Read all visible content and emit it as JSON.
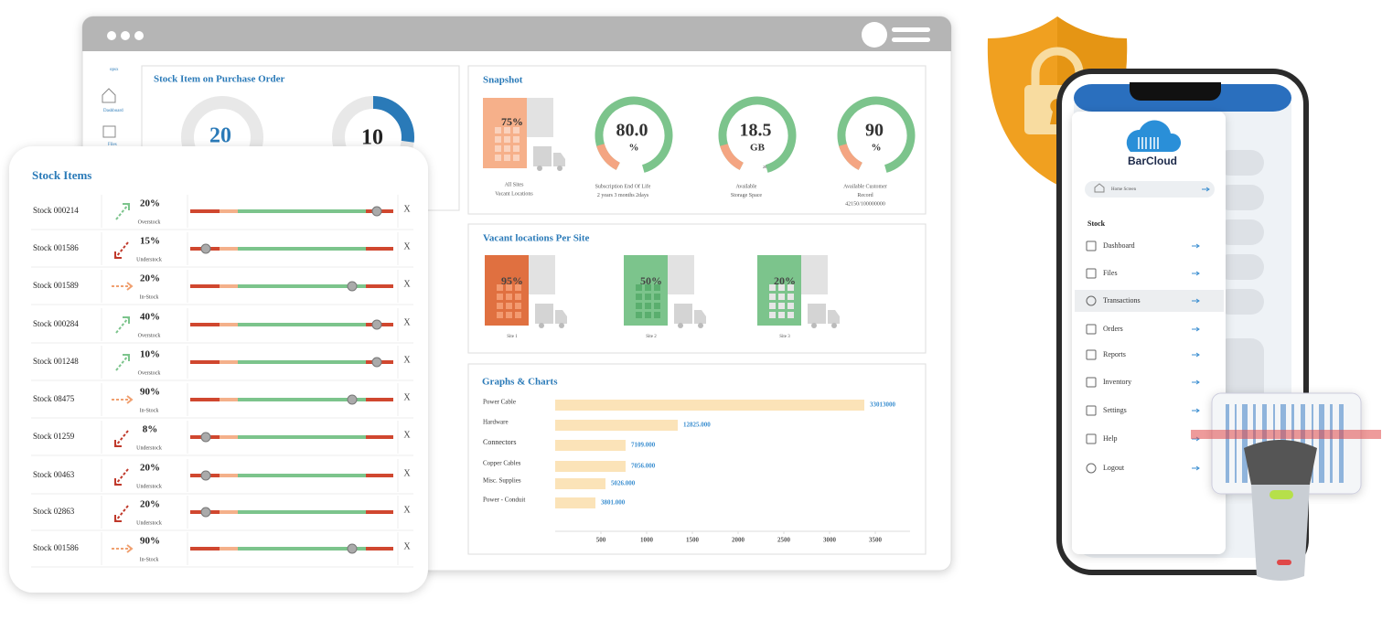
{
  "sidebar": {
    "items": [
      "opsx",
      "Dashboard",
      "Files"
    ]
  },
  "purchase_order": {
    "title": "Stock Item on Purchase Order",
    "gauges": [
      "20",
      "10"
    ]
  },
  "snapshot": {
    "title": "Snapshot",
    "vacant": {
      "value": "75%",
      "caption": [
        "All Sites",
        "Vacant Locations"
      ]
    },
    "gauges": [
      {
        "value": "80.0",
        "unit": "%",
        "caption": [
          "Subscription End Of Life",
          "2 years 3 months 2days"
        ]
      },
      {
        "value": "18.5",
        "unit": "GB",
        "note": "20",
        "caption": [
          "Available",
          "Storage Space"
        ]
      },
      {
        "value": "90",
        "unit": "%",
        "caption": [
          "Available Customer",
          "Record",
          "42150/100000000"
        ]
      }
    ]
  },
  "vacant_sites": {
    "title": "Vacant locations Per Site",
    "sites": [
      {
        "value": "95%",
        "label": "Site 1",
        "color": "#e07040"
      },
      {
        "value": "50%",
        "label": "Site 2",
        "color": "#7cc48c"
      },
      {
        "value": "20%",
        "label": "Site 3",
        "color": "#7cc48c"
      }
    ]
  },
  "graphs": {
    "title": "Graphs & Charts",
    "chart_data": {
      "type": "bar",
      "orientation": "horizontal",
      "categories": [
        "Power Cable",
        "Hardware",
        "Connectors",
        "Copper Cables",
        "Misc. Supplies",
        "Power - Conduit"
      ],
      "values": [
        3380,
        1340,
        770,
        770,
        550,
        440
      ],
      "annotations": [
        "33013000",
        "12825.000",
        "7109.000",
        "7056.000",
        "5026.000",
        "3801.000"
      ],
      "color": "#fbe3b8",
      "xlim": [
        0,
        3880
      ],
      "xticks": [
        500,
        1000,
        1500,
        2000,
        2500,
        3000,
        3500
      ]
    }
  },
  "stock_items": {
    "title": "Stock Items",
    "close_label": "X",
    "rows": [
      {
        "name": "Stock 000214",
        "percent": "20%",
        "status": "Overstock",
        "trend": "up"
      },
      {
        "name": "Stock 001586",
        "percent": "15%",
        "status": "Understock",
        "trend": "down"
      },
      {
        "name": "Stock 001589",
        "percent": "20%",
        "status": "In-Stock",
        "trend": "right"
      },
      {
        "name": "Stock 000284",
        "percent": "40%",
        "status": "Overstock",
        "trend": "up"
      },
      {
        "name": "Stock 001248",
        "percent": "10%",
        "status": "Overstock",
        "trend": "up"
      },
      {
        "name": "Stock 08475",
        "percent": "90%",
        "status": "In-Stock",
        "trend": "right"
      },
      {
        "name": "Stock 01259",
        "percent": "8%",
        "status": "Understock",
        "trend": "down"
      },
      {
        "name": "Stock 00463",
        "percent": "20%",
        "status": "Understock",
        "trend": "down"
      },
      {
        "name": "Stock 02863",
        "percent": "20%",
        "status": "Understock",
        "trend": "down"
      },
      {
        "name": "Stock 001586",
        "percent": "90%",
        "status": "In-Stock",
        "trend": "right"
      }
    ]
  },
  "phone": {
    "logo": "BarCloud",
    "search": "Home Screen",
    "section": "Stock",
    "menu": [
      "Dashboard",
      "Files",
      "Transactions",
      "Orders",
      "Reports",
      "Inventory",
      "Settings",
      "Help",
      "Logout"
    ],
    "selected": 2
  }
}
